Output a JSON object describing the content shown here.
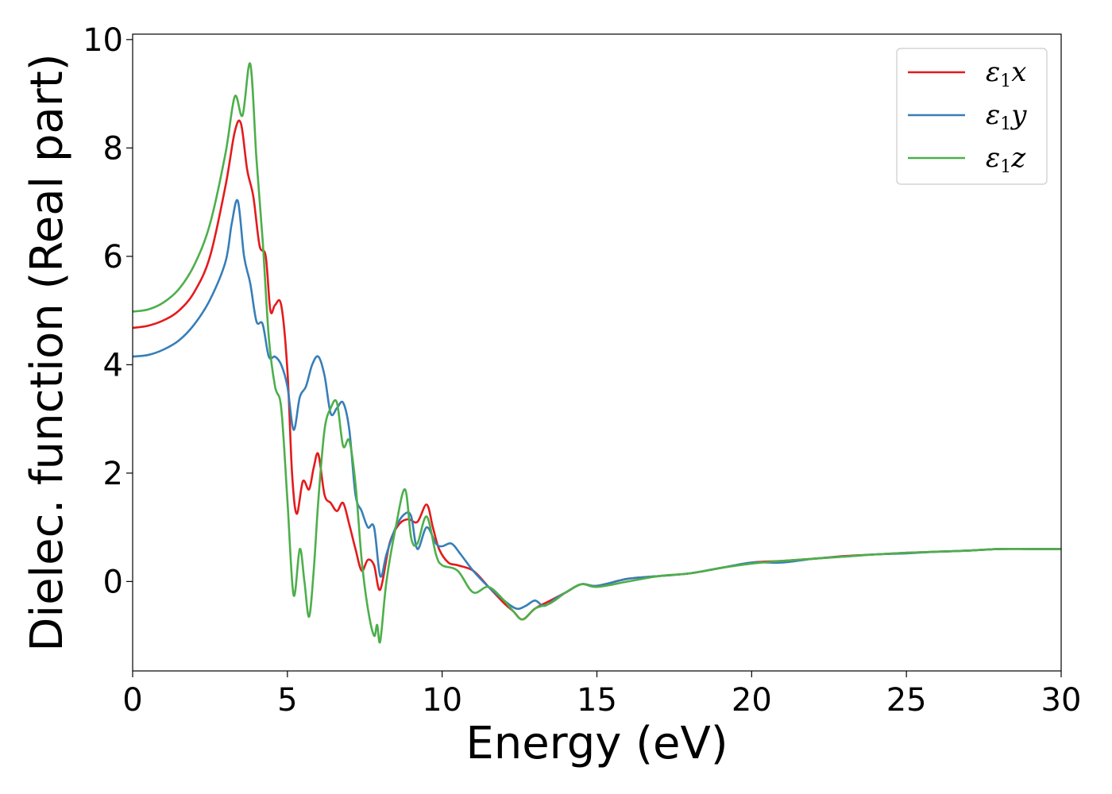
{
  "chart_data": {
    "type": "line",
    "xlabel": "Energy (eV)",
    "ylabel": "Dielec. function (Real part)",
    "xlim": [
      0,
      30
    ],
    "ylim": [
      -1.65,
      10.1
    ],
    "xticks": [
      0,
      5,
      10,
      15,
      20,
      25,
      30
    ],
    "yticks": [
      0,
      2,
      4,
      6,
      8,
      10
    ],
    "grid": false,
    "legend_position": "top-right",
    "series": [
      {
        "name": "ε1x",
        "label_base": "ε",
        "label_sub": "1",
        "label_var": "x",
        "color": "#e41a1c",
        "x": [
          0,
          0.5,
          1,
          1.5,
          2,
          2.5,
          3,
          3.3,
          3.5,
          3.7,
          3.9,
          4.1,
          4.3,
          4.45,
          4.6,
          4.8,
          5.0,
          5.15,
          5.3,
          5.5,
          5.7,
          5.85,
          6.0,
          6.2,
          6.4,
          6.6,
          6.8,
          7.0,
          7.2,
          7.4,
          7.6,
          7.8,
          8.0,
          8.3,
          8.6,
          8.9,
          9.2,
          9.5,
          9.7,
          9.9,
          10.2,
          10.5,
          11.0,
          11.5,
          12.0,
          12.3,
          12.6,
          13.0,
          13.5,
          14.0,
          14.5,
          15,
          16,
          17,
          18,
          19,
          20,
          21,
          22,
          23,
          24,
          25,
          26,
          27,
          28,
          29,
          30
        ],
        "y": [
          4.68,
          4.72,
          4.82,
          5.0,
          5.35,
          6.0,
          7.3,
          8.3,
          8.45,
          7.6,
          7.1,
          6.2,
          6.0,
          5.0,
          5.1,
          5.1,
          3.9,
          2.0,
          1.25,
          1.85,
          1.7,
          2.1,
          2.35,
          1.6,
          1.45,
          1.3,
          1.45,
          1.05,
          0.6,
          0.2,
          0.4,
          0.3,
          -0.15,
          0.7,
          1.05,
          1.15,
          1.1,
          1.42,
          1.0,
          0.6,
          0.35,
          0.3,
          0.2,
          -0.1,
          -0.4,
          -0.55,
          -0.7,
          -0.5,
          -0.35,
          -0.2,
          -0.05,
          -0.08,
          0.05,
          0.1,
          0.15,
          0.25,
          0.35,
          0.38,
          0.42,
          0.47,
          0.5,
          0.53,
          0.55,
          0.57,
          0.6,
          0.6,
          0.6
        ]
      },
      {
        "name": "ε1y",
        "label_base": "ε",
        "label_sub": "1",
        "label_var": "y",
        "color": "#377eb8",
        "x": [
          0,
          0.5,
          1,
          1.5,
          2,
          2.5,
          3,
          3.2,
          3.4,
          3.6,
          3.8,
          4.0,
          4.2,
          4.4,
          4.6,
          4.8,
          5.0,
          5.2,
          5.4,
          5.6,
          5.8,
          6.0,
          6.2,
          6.4,
          6.6,
          6.8,
          7.0,
          7.2,
          7.4,
          7.6,
          7.8,
          8.0,
          8.2,
          8.5,
          8.8,
          9.0,
          9.2,
          9.5,
          9.8,
          10.0,
          10.3,
          10.6,
          11.0,
          11.5,
          12.0,
          12.4,
          12.7,
          13.0,
          13.3,
          13.7,
          14.0,
          14.5,
          15,
          16,
          17,
          18,
          19,
          20,
          21,
          22,
          23,
          24,
          25,
          26,
          27,
          28,
          29,
          30
        ],
        "y": [
          4.15,
          4.18,
          4.28,
          4.45,
          4.75,
          5.2,
          5.9,
          6.6,
          7.02,
          6.0,
          5.5,
          4.8,
          4.75,
          4.15,
          4.15,
          4.0,
          3.6,
          2.8,
          3.4,
          3.6,
          4.0,
          4.15,
          3.8,
          3.1,
          3.2,
          3.3,
          2.8,
          1.6,
          1.3,
          1.0,
          1.0,
          0.1,
          0.5,
          1.0,
          1.25,
          1.2,
          0.6,
          1.0,
          0.7,
          0.65,
          0.7,
          0.5,
          0.2,
          -0.1,
          -0.35,
          -0.5,
          -0.45,
          -0.35,
          -0.45,
          -0.3,
          -0.2,
          -0.05,
          -0.08,
          0.05,
          0.1,
          0.15,
          0.25,
          0.35,
          0.35,
          0.42,
          0.46,
          0.5,
          0.52,
          0.55,
          0.57,
          0.6,
          0.6,
          0.6
        ]
      },
      {
        "name": "ε1z",
        "label_base": "ε",
        "label_sub": "1",
        "label_var": "z",
        "color": "#4daf4a",
        "x": [
          0,
          0.5,
          1,
          1.5,
          2,
          2.5,
          3,
          3.3,
          3.55,
          3.8,
          4.0,
          4.2,
          4.4,
          4.6,
          4.8,
          5.0,
          5.2,
          5.4,
          5.55,
          5.7,
          5.85,
          6.0,
          6.2,
          6.4,
          6.6,
          6.8,
          7.0,
          7.2,
          7.4,
          7.6,
          7.8,
          7.9,
          8.0,
          8.2,
          8.5,
          8.8,
          9.0,
          9.2,
          9.5,
          9.8,
          10.0,
          10.5,
          11.0,
          11.5,
          12.0,
          12.3,
          12.6,
          13.0,
          13.5,
          14.0,
          14.5,
          15,
          16,
          17,
          18,
          19,
          20,
          21,
          22,
          23,
          24,
          25,
          26,
          27,
          28,
          29,
          30
        ],
        "y": [
          4.98,
          5.02,
          5.15,
          5.4,
          5.85,
          6.6,
          7.9,
          8.95,
          8.6,
          9.55,
          7.8,
          6.3,
          4.5,
          3.6,
          3.2,
          1.5,
          -0.25,
          0.6,
          0.0,
          -0.65,
          0.2,
          1.5,
          2.8,
          3.2,
          3.3,
          2.5,
          2.6,
          1.8,
          0.4,
          -0.5,
          -1.0,
          -0.8,
          -1.1,
          0.0,
          1.0,
          1.7,
          0.8,
          0.7,
          1.2,
          0.5,
          0.3,
          0.2,
          -0.2,
          -0.1,
          -0.35,
          -0.55,
          -0.7,
          -0.5,
          -0.4,
          -0.2,
          -0.05,
          -0.1,
          0.0,
          0.1,
          0.15,
          0.25,
          0.33,
          0.38,
          0.42,
          0.46,
          0.5,
          0.53,
          0.55,
          0.57,
          0.6,
          0.6,
          0.6
        ]
      }
    ]
  }
}
